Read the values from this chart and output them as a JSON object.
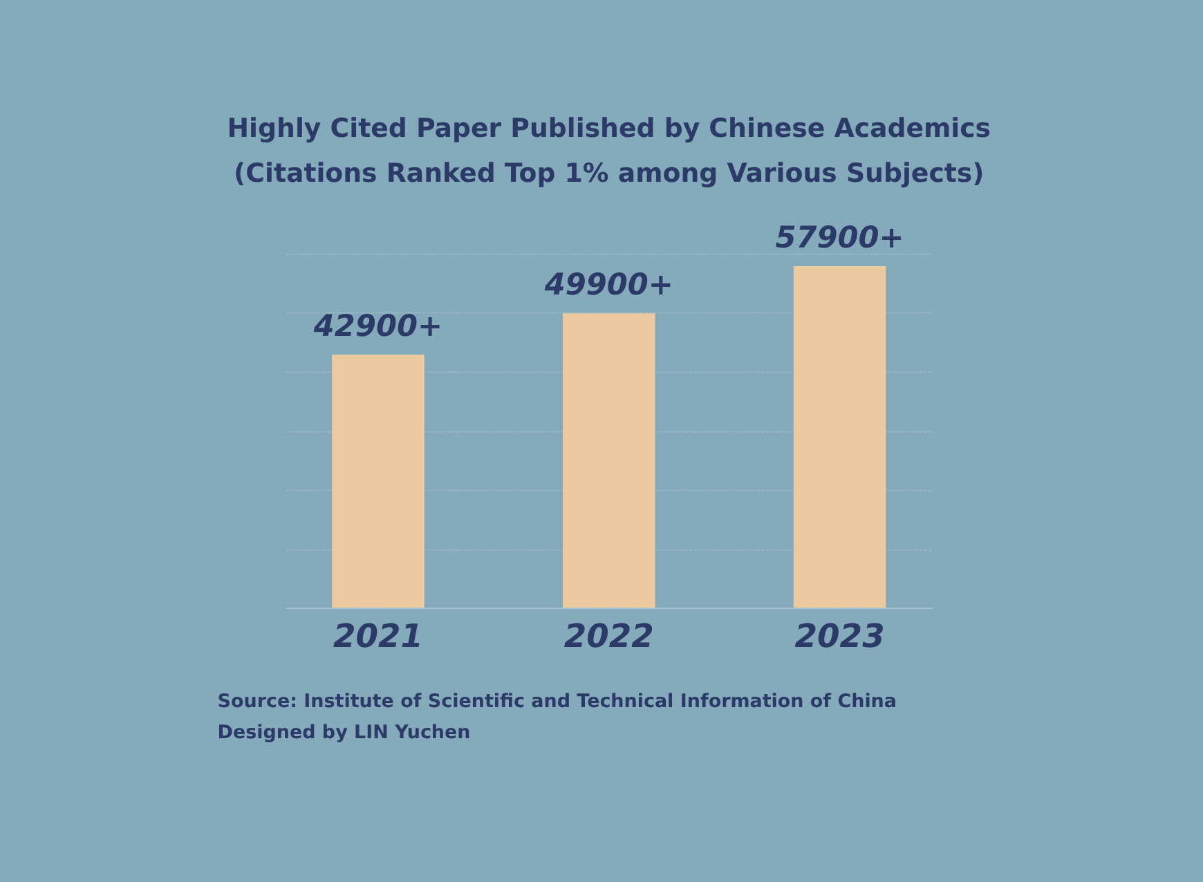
{
  "chart_data": {
    "type": "bar",
    "title": "Highly Cited Paper Published by Chinese Academics\n(Citations Ranked Top 1% among Various Subjects)",
    "categories": [
      "2021",
      "2022",
      "2023"
    ],
    "values": [
      42900,
      49900,
      57900
    ],
    "value_labels": [
      "42900+",
      "49900+",
      "57900+"
    ],
    "color": "#edc9a0",
    "ylim": [
      0,
      60000
    ],
    "yticks": [
      {
        "value": 0,
        "label": null
      },
      {
        "value": 10000,
        "label": null
      },
      {
        "value": 20000,
        "label": null
      },
      {
        "value": 30000,
        "label": null
      },
      {
        "value": 40000,
        "label": null
      },
      {
        "value": 50000,
        "label": null
      },
      {
        "value": 60000,
        "label": null
      }
    ],
    "grid": "y",
    "tick_labels": "x",
    "annotations": [
      "Source: Institute of Scientific and Technical Information of China",
      "Designed by LIN Yuchen"
    ]
  }
}
